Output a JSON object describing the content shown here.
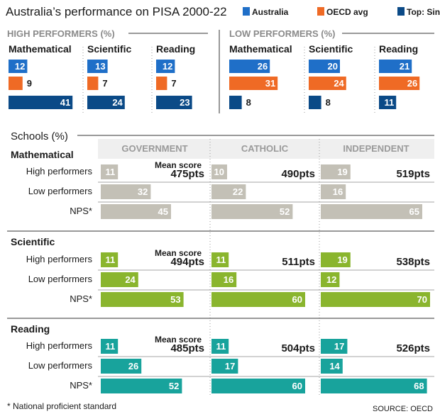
{
  "title": "Australia’s performance on PISA 2000-22",
  "legend": [
    {
      "label": "Australia",
      "color": "#1f6fc8"
    },
    {
      "label": "OECD avg",
      "color": "#ef6a25"
    },
    {
      "label": "Top: Singapore",
      "color": "#0b4a87"
    }
  ],
  "colors": {
    "australia": "#1f6fc8",
    "oecd": "#ef6a25",
    "singapore": "#0b4a87",
    "math_bar": "#c3c0b6",
    "sci_bar": "#8ab52e",
    "read_bar": "#18a39c",
    "col_header": "#9a9a9a",
    "header_bg": "#efefef"
  },
  "top": {
    "high_title": "HIGH PERFORMERS (%)",
    "low_title": "LOW PERFORMERS (%)"
  },
  "schools": {
    "title": "Schools (%)",
    "columns": [
      "GOVERNMENT",
      "CATHOLIC",
      "INDEPENDENT"
    ],
    "row_labels": [
      "High performers",
      "Low performers",
      "NPS*"
    ],
    "mean_label": "Mean score"
  },
  "footnote": "* National proficient standard",
  "source": "SOURCE: OECD",
  "chart_data": [
    {
      "type": "bar",
      "title": "HIGH PERFORMERS (%)",
      "groups": [
        "Mathematical",
        "Scientific",
        "Reading"
      ],
      "series": [
        {
          "name": "Australia",
          "values": [
            12,
            13,
            12
          ]
        },
        {
          "name": "OECD avg",
          "values": [
            9,
            7,
            7
          ]
        },
        {
          "name": "Top: Singapore",
          "values": [
            41,
            24,
            23
          ]
        }
      ]
    },
    {
      "type": "bar",
      "title": "LOW PERFORMERS (%)",
      "groups": [
        "Mathematical",
        "Scientific",
        "Reading"
      ],
      "series": [
        {
          "name": "Australia",
          "values": [
            26,
            20,
            21
          ]
        },
        {
          "name": "OECD avg",
          "values": [
            31,
            24,
            26
          ]
        },
        {
          "name": "Top: Singapore",
          "values": [
            8,
            8,
            11
          ]
        }
      ]
    },
    {
      "type": "bar",
      "title": "Schools (%)",
      "columns": [
        "GOVERNMENT",
        "CATHOLIC",
        "INDEPENDENT"
      ],
      "metrics": [
        "High performers",
        "Low performers",
        "NPS*"
      ],
      "subjects": [
        {
          "name": "Mathematical",
          "values": [
            [
              11,
              10,
              19
            ],
            [
              32,
              22,
              16
            ],
            [
              45,
              52,
              65
            ]
          ],
          "mean_scores": [
            "475pts",
            "490pts",
            "519pts"
          ]
        },
        {
          "name": "Scientific",
          "values": [
            [
              11,
              11,
              19
            ],
            [
              24,
              16,
              12
            ],
            [
              53,
              60,
              70
            ]
          ],
          "mean_scores": [
            "494pts",
            "511pts",
            "538pts"
          ]
        },
        {
          "name": "Reading",
          "values": [
            [
              11,
              11,
              17
            ],
            [
              26,
              17,
              14
            ],
            [
              52,
              60,
              68
            ]
          ],
          "mean_scores": [
            "485pts",
            "504pts",
            "526pts"
          ]
        }
      ]
    }
  ]
}
